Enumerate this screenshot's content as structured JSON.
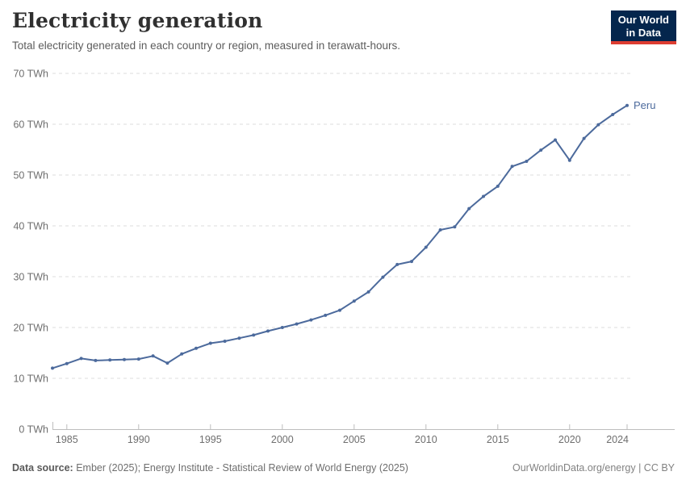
{
  "header": {
    "title": "Electricity generation",
    "subtitle": "Total electricity generated in each country or region, measured in terawatt-hours."
  },
  "logo": {
    "line1": "Our World",
    "line2": "in Data"
  },
  "footer": {
    "source_label": "Data source:",
    "source_text": " Ember (2025); Energy Institute - Statistical Review of World Energy (2025)",
    "credit": "OurWorldinData.org/energy | CC BY"
  },
  "colors": {
    "line": "#4c6a9c",
    "grid": "#dedede",
    "axis_text": "#6e6e6e",
    "axis_line": "#bdbdbd",
    "logo_bg": "#04264d",
    "logo_red": "#dd3d31"
  },
  "chart_data": {
    "type": "line",
    "title": "Electricity generation",
    "unit": "TWh",
    "xlim": [
      1984,
      2024
    ],
    "ylim": [
      0,
      70
    ],
    "grid": true,
    "y_ticks": [
      0,
      10,
      20,
      30,
      40,
      50,
      60,
      70
    ],
    "y_tick_suffix": " TWh",
    "x_ticks": [
      1985,
      1990,
      1995,
      2000,
      2005,
      2010,
      2015,
      2020,
      2024
    ],
    "x": [
      1984,
      1985,
      1986,
      1987,
      1988,
      1989,
      1990,
      1991,
      1992,
      1993,
      1994,
      1995,
      1996,
      1997,
      1998,
      1999,
      2000,
      2001,
      2002,
      2003,
      2004,
      2005,
      2006,
      2007,
      2008,
      2009,
      2010,
      2011,
      2012,
      2013,
      2014,
      2015,
      2016,
      2017,
      2018,
      2019,
      2020,
      2021,
      2022,
      2023,
      2024
    ],
    "series": [
      {
        "name": "Peru",
        "values": [
          12.0,
          12.9,
          13.9,
          13.5,
          13.6,
          13.7,
          13.8,
          14.4,
          13.0,
          14.8,
          15.9,
          16.9,
          17.3,
          17.9,
          18.5,
          19.3,
          20.0,
          20.7,
          21.5,
          22.4,
          23.4,
          25.2,
          27.0,
          29.9,
          32.4,
          33.0,
          35.8,
          39.2,
          39.8,
          43.4,
          45.8,
          47.8,
          51.7,
          52.7,
          54.9,
          56.9,
          52.9,
          57.2,
          59.9,
          61.9,
          63.7
        ]
      }
    ],
    "legend_position": "end-of-line-label"
  }
}
